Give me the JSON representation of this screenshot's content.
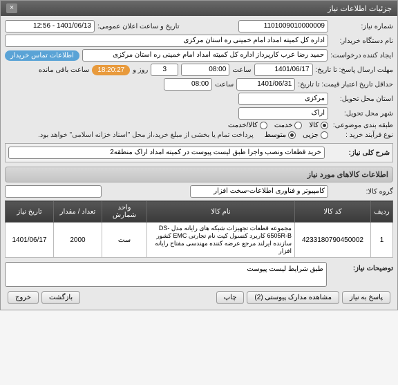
{
  "window": {
    "title": "جزئیات اطلاعات نیاز"
  },
  "fields": {
    "need_no_label": "شماره نیاز:",
    "need_no": "1101009010000009",
    "announce_label": "تاریخ و ساعت اعلان عمومی:",
    "announce_val": "1401/06/13 - 12:56",
    "device_label": "نام دستگاه خریدار:",
    "device_val": "اداره کل کمیته امداد امام خمینی ره استان مرکزی",
    "creator_label": "ایجاد کننده درخواست:",
    "creator_val": "حمید رضا عرب کارپرداز اداره کل کمیته امداد امام خمینی ره استان مرکزی",
    "contact_btn": "اطلاعات تماس خریدار",
    "deadline_label": "مهلت ارسال پاسخ: تا تاریخ:",
    "deadline_date": "1401/06/17",
    "time_label": "ساعت",
    "deadline_time": "08:00",
    "days_sep": "روز و",
    "days_val": "3",
    "countdown": "18:20:27",
    "remain_label": "ساعت باقی مانده",
    "valid_label": "حداقل تاریخ اعتبار قیمت: تا تاریخ:",
    "valid_date": "1401/06/31",
    "valid_time": "08:00",
    "province_label": "استان محل تحویل:",
    "province_val": "مرکزی",
    "city_label": "شهر محل تحویل:",
    "city_val": "اراک",
    "category_label": "طبقه بندی موضوعی:",
    "cat_goods": "کالا",
    "cat_service": "خدمت",
    "cat_both": "کالا/خدمت",
    "process_label": "نوع فرآیند خرید :",
    "proc_small": "جزیی",
    "proc_medium": "متوسط",
    "payment_note": "پرداخت تمام یا بخشی از مبلغ خرید،از محل \"اسناد خزانه اسلامی\" خواهد بود.",
    "summary_label": "شرح کلی نیاز:",
    "summary_val": "خرید قطعات ونصب واجرا طبق لیست پیوست در کمیته امداد اراک منطقه2",
    "items_header": "اطلاعات کالاهای مورد نیاز",
    "group_label": "گروه کالا:",
    "group_val": "کامپیوتر و فناوری اطلاعات-سخت افزار",
    "search_placeholder": "",
    "notes_label": "توضیحات نیاز:",
    "notes_val": "طبق شرایط لیست پیوست"
  },
  "table": {
    "columns": [
      "ردیف",
      "کد کالا",
      "نام کالا",
      "واحد شمارش",
      "تعداد / مقدار",
      "تاریخ نیاز"
    ],
    "rows": [
      {
        "idx": "1",
        "code": "4233180790450002",
        "name": "مجموعه قطعات تجهیزات شبکه های رایانه مدل DS-6505R-B کاربرد کنسول کیت نام تجارتی EMC کشور سازنده ایرلند مرجع عرضه کننده مهندسی مفتاح رایانه افزار",
        "unit": "ست",
        "qty": "2000",
        "date": "1401/06/17"
      }
    ]
  },
  "footer": {
    "reply": "پاسخ به نیاز",
    "attach": "مشاهده مدارک پیوستی (2)",
    "print": "چاپ",
    "back": "بازگشت",
    "exit": "خروج"
  }
}
